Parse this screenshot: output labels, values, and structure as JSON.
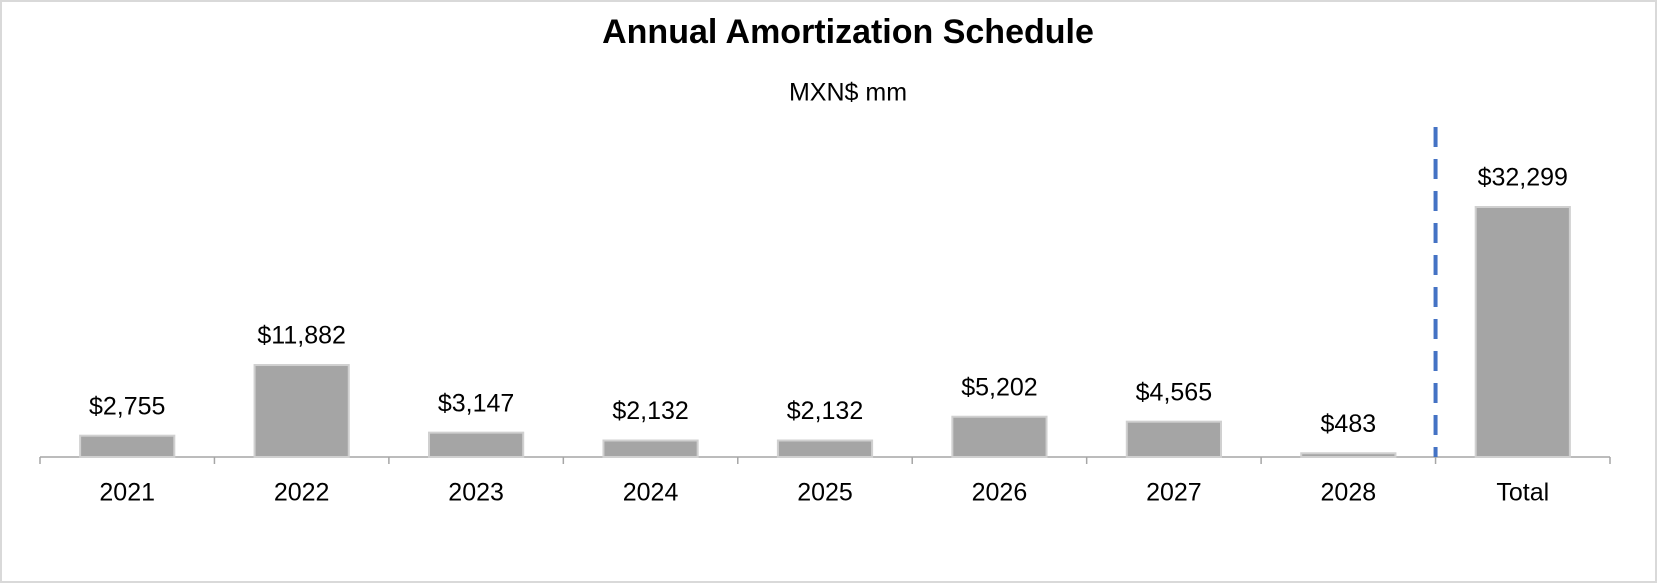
{
  "chart_data": {
    "type": "bar",
    "title": "Annual Amortization Schedule",
    "subtitle": "MXN$ mm",
    "categories": [
      "2021",
      "2022",
      "2023",
      "2024",
      "2025",
      "2026",
      "2027",
      "2028",
      "Total"
    ],
    "values": [
      2755,
      11882,
      3147,
      2132,
      2132,
      5202,
      4565,
      483,
      32299
    ],
    "value_labels": [
      "$2,755",
      "$11,882",
      "$3,147",
      "$2,132",
      "$2,132",
      "$5,202",
      "$4,565",
      "$483",
      "$32,299"
    ],
    "color": "#a5a5a5"
  }
}
